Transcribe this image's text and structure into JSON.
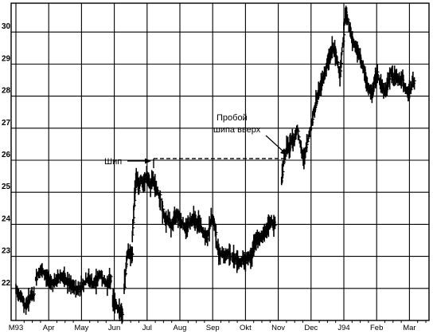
{
  "chart_data": {
    "type": "bar",
    "subtype": "ohlc-price-bars",
    "title": "",
    "xlabel": "",
    "ylabel": "",
    "ylim": [
      21.0,
      30.9
    ],
    "y_ticks": [
      "22",
      "23",
      "24",
      "25",
      "26",
      "27",
      "28",
      "29",
      "30"
    ],
    "x_ticks": [
      "M93",
      "Apr",
      "May",
      "Jun",
      "Jul",
      "Aug",
      "Sep",
      "Okt",
      "Nov",
      "Dec",
      "J94",
      "Feb",
      "Mar"
    ],
    "grid": true,
    "annotations": {
      "spike_label": "Шип",
      "breakout_line1": "Пробой",
      "breakout_line2": "шипа вверх"
    },
    "spike_level": 26.05,
    "segments": [
      {
        "from_month": 0.0,
        "to_month": 0.55,
        "values": [
          21.95,
          21.85,
          21.8,
          21.7,
          21.5,
          21.45,
          21.6,
          21.7,
          21.8,
          21.75
        ]
      },
      {
        "from_month": 0.6,
        "to_month": 1.95,
        "values": [
          22.3,
          22.45,
          22.55,
          22.5,
          22.4,
          22.3,
          22.25,
          22.15,
          22.2,
          22.3,
          22.4,
          22.35,
          22.25,
          22.2,
          22.1,
          22.05,
          22.0,
          21.95,
          22.05
        ]
      },
      {
        "from_month": 1.95,
        "to_month": 2.9,
        "values": [
          22.0,
          22.1,
          22.15,
          22.25,
          22.3,
          22.2,
          22.1,
          22.2,
          22.3,
          22.45,
          22.35,
          22.2,
          22.15,
          22.2,
          22.3
        ]
      },
      {
        "from_month": 2.95,
        "to_month": 3.25,
        "values": [
          21.65,
          21.55,
          21.5,
          21.4,
          21.3,
          21.25,
          21.15
        ]
      },
      {
        "from_month": 3.3,
        "to_month": 3.55,
        "values": [
          22.0,
          22.5,
          23.0,
          23.2,
          23.05,
          23.1,
          23.0
        ]
      },
      {
        "from_month": 3.55,
        "to_month": 3.75,
        "values": [
          23.6,
          24.3,
          25.1,
          25.5,
          25.3,
          25.1
        ]
      },
      {
        "from_month": 3.75,
        "to_month": 4.4,
        "values": [
          25.2,
          25.45,
          25.2,
          25.35,
          25.55,
          25.3,
          25.2,
          25.4,
          25.25,
          25.1,
          24.95,
          24.8
        ]
      },
      {
        "from_month": 4.45,
        "to_month": 5.55,
        "values": [
          24.55,
          24.25,
          24.1,
          24.2,
          23.95,
          24.0,
          24.2,
          24.35,
          24.25,
          24.1,
          24.0,
          23.85,
          23.95,
          24.05,
          24.15,
          24.25,
          24.1,
          23.95
        ]
      },
      {
        "from_month": 5.55,
        "to_month": 6.1,
        "values": [
          24.15,
          24.0,
          23.85,
          23.7,
          23.6,
          23.55,
          23.8,
          24.05,
          24.25,
          24.0,
          23.7
        ]
      },
      {
        "from_month": 6.1,
        "to_month": 6.55,
        "values": [
          23.4,
          23.2,
          23.05,
          23.1,
          23.0,
          23.05,
          23.1,
          23.0
        ]
      },
      {
        "from_month": 6.6,
        "to_month": 7.2,
        "values": [
          23.0,
          22.9,
          22.95,
          22.85,
          22.8,
          22.9,
          22.85,
          22.95,
          23.0,
          22.95,
          23.05
        ]
      },
      {
        "from_month": 7.2,
        "to_month": 7.9,
        "values": [
          23.15,
          23.3,
          23.45,
          23.5,
          23.6,
          23.55,
          23.65,
          23.75,
          23.8,
          23.9,
          24.0,
          24.1,
          23.95,
          24.0
        ]
      },
      {
        "from_month": 8.1,
        "to_month": 8.45,
        "values": [
          25.4,
          25.9,
          26.2,
          26.5,
          26.3,
          26.6,
          26.7
        ]
      },
      {
        "from_month": 8.45,
        "to_month": 9.05,
        "values": [
          26.5,
          26.8,
          27.0,
          26.6,
          26.2,
          26.05,
          26.4,
          26.7,
          27.0,
          27.3
        ]
      },
      {
        "from_month": 9.05,
        "to_month": 10.0,
        "values": [
          27.4,
          27.6,
          27.9,
          28.1,
          28.3,
          28.5,
          28.7,
          28.9,
          29.1,
          29.3,
          29.5,
          29.45,
          29.2,
          29.0,
          28.6,
          29.4,
          29.9
        ]
      },
      {
        "from_month": 10.0,
        "to_month": 10.65,
        "values": [
          30.2,
          30.55,
          30.35,
          30.0,
          29.7,
          29.6,
          29.5,
          29.3,
          29.1,
          28.9,
          28.7
        ]
      },
      {
        "from_month": 10.65,
        "to_month": 11.4,
        "values": [
          28.5,
          28.3,
          28.2,
          28.05,
          28.3,
          28.55,
          28.7,
          28.45,
          28.3,
          28.2,
          28.15,
          28.35,
          28.6
        ]
      },
      {
        "from_month": 11.4,
        "to_month": 12.15,
        "values": [
          28.8,
          28.7,
          28.5,
          28.65,
          28.55,
          28.45,
          28.6,
          28.3,
          28.15,
          28.1,
          28.2,
          28.4,
          28.45
        ]
      }
    ]
  }
}
